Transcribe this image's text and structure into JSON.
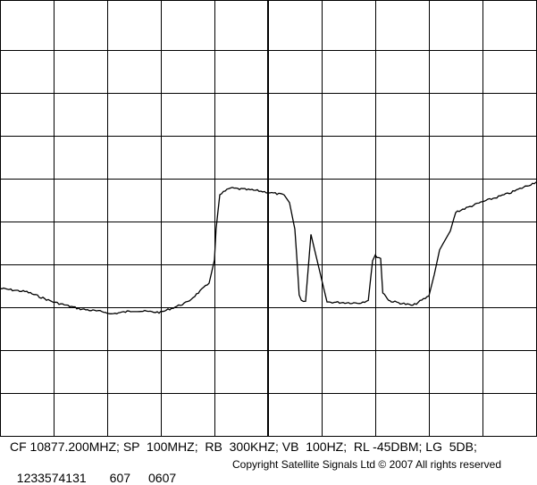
{
  "settings_line": "CF 10877.200MHZ; SP  100MHZ;  RB  300KHZ; VB  100HZ;  RL -45DBM; LG  5DB;",
  "id_line": {
    "serial": "1233574131",
    "code_a": "607",
    "code_b": "0607"
  },
  "copyright": "Copyright Satellite Signals Ltd © 2007 All rights reserved",
  "colors": {
    "background": "#ffffff",
    "grid": "#000000",
    "trace": "#000000"
  },
  "chart_data": {
    "type": "line",
    "title": "",
    "xlabel": "",
    "ylabel": "",
    "center_frequency": "10877.200MHZ",
    "span": "100MHZ",
    "reference_level": "-45DBM",
    "scale": "5DB",
    "grid": {
      "divisions_x": 10,
      "divisions_y": 10,
      "center_line": true
    },
    "xlim": [
      10827.2,
      10927.2
    ],
    "ylim": [
      -95,
      -45
    ],
    "x_unit": "MHz",
    "y_unit": "dBm",
    "series": [
      {
        "x": [
          10827.2,
          10832.2,
          10837.2,
          10842.2,
          10847.2,
          10847.7,
          10852.2,
          10857.2,
          10862.2,
          10866.2,
          10867.2,
          10867.5,
          10868.2,
          10870.2,
          10875.2,
          10877.2,
          10880.2,
          10881.2,
          10882.2,
          10882.6,
          10883.0,
          10883.4,
          10884.2,
          10885.2,
          10888.2,
          10894.2,
          10895.9,
          10896.7,
          10897.2,
          10898.2,
          10898.6,
          10899.2,
          10899.7,
          10900.2,
          10904.2,
          10907.2,
          10908.2,
          10909.2,
          10911.2,
          10912.2,
          10917.2,
          10922.2,
          10927.2
        ],
        "y": [
          -77.8,
          -78.2,
          -79.4,
          -80.2,
          -80.6,
          -80.8,
          -80.4,
          -80.6,
          -79.4,
          -77.2,
          -74.5,
          -70.9,
          -66.8,
          -66.1,
          -66.4,
          -66.6,
          -66.9,
          -67.8,
          -70.9,
          -74.5,
          -78.6,
          -79.3,
          -79.3,
          -71.5,
          -79.4,
          -79.5,
          -79.2,
          -74.5,
          -74.0,
          -74.3,
          -78.3,
          -78.7,
          -79.2,
          -79.3,
          -79.8,
          -78.7,
          -76.2,
          -73.3,
          -71.1,
          -68.9,
          -67.7,
          -66.7,
          -65.4
        ]
      }
    ]
  }
}
